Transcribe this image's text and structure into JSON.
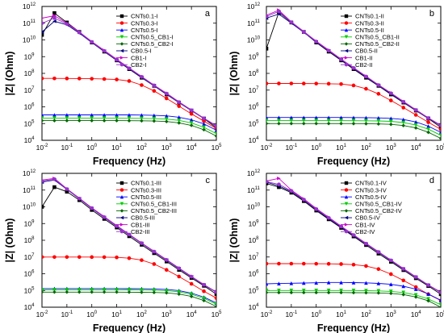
{
  "chart_data": [
    {
      "panel_label": "a",
      "type": "line",
      "xscale": "log",
      "yscale": "log",
      "xlabel": "Frequency (Hz)",
      "ylabel": "|Z| (Ohm)",
      "xlim": [
        0.01,
        100000
      ],
      "ylim": [
        10000,
        1000000000000
      ],
      "x": [
        0.01,
        0.0316,
        0.1,
        0.316,
        1,
        3.16,
        10,
        31.6,
        100,
        316,
        1000,
        3162,
        10000,
        31623,
        100000
      ],
      "series": [
        {
          "name": "CNTs0.1-I",
          "color": "#000000",
          "marker": "square",
          "values": [
            20000000000,
            400000000000,
            110000000000,
            30000000000,
            7000000000,
            2000000000,
            600000000,
            180000000,
            55000000,
            18000000,
            5500000,
            1800000,
            600000,
            200000,
            55000
          ]
        },
        {
          "name": "CNTs0.3-I",
          "color": "#ff0000",
          "marker": "circle",
          "values": [
            50000000,
            50000000,
            49500000,
            49000000,
            48000000,
            46000000,
            43000000,
            35000000,
            20000000,
            9000000,
            3200000,
            1100000,
            380000,
            140000,
            50000
          ]
        },
        {
          "name": "CNTs0.5-I",
          "color": "#0000ff",
          "marker": "triangle-up",
          "values": [
            330000,
            330000,
            330000,
            330000,
            330000,
            330000,
            330000,
            328000,
            322000,
            310000,
            290000,
            240000,
            170000,
            95000,
            40000
          ]
        },
        {
          "name": "CNTs0.5_CB1-I",
          "color": "#00cc00",
          "marker": "triangle-down",
          "values": [
            210000,
            210000,
            210000,
            210000,
            210000,
            210000,
            210000,
            208000,
            205000,
            198000,
            185000,
            155000,
            110000,
            60000,
            25000
          ]
        },
        {
          "name": "CNTs0.5_CB2-I",
          "color": "#006600",
          "marker": "diamond",
          "values": [
            150000,
            150000,
            150000,
            150000,
            150000,
            150000,
            150000,
            148000,
            146000,
            142000,
            132000,
            110000,
            78000,
            43000,
            18000
          ]
        },
        {
          "name": "CB0.5-I",
          "color": "#000080",
          "marker": "triangle-left",
          "values": [
            30000000000,
            130000000000,
            80000000000,
            25000000000,
            7000000000,
            2100000000,
            600000000,
            190000000,
            58000000,
            18000000,
            5800000,
            1800000,
            600000,
            200000,
            70000
          ]
        },
        {
          "name": "CB1-I",
          "color": "#cc00cc",
          "marker": "triangle-right",
          "values": [
            200000000000,
            280000000000,
            100000000000,
            30000000000,
            8000000000,
            2400000000,
            700000000,
            210000000,
            65000000,
            20000000,
            6500000,
            2000000,
            650000,
            210000,
            75000
          ]
        },
        {
          "name": "CB2-I",
          "color": "#9933cc",
          "marker": "circle",
          "values": [
            100000000000,
            200000000000,
            90000000000,
            28000000000,
            7500000000,
            2200000000,
            650000000,
            200000000,
            62000000,
            19000000,
            6200000,
            1900000,
            620000,
            205000,
            72000
          ]
        }
      ]
    },
    {
      "panel_label": "b",
      "type": "line",
      "xscale": "log",
      "yscale": "log",
      "xlabel": "Frequency (Hz)",
      "ylabel": "|Z| (Ohm)",
      "xlim": [
        0.01,
        100000
      ],
      "ylim": [
        10000,
        1000000000000
      ],
      "x": [
        0.01,
        0.0316,
        0.1,
        0.316,
        1,
        3.16,
        10,
        31.6,
        100,
        316,
        1000,
        3162,
        10000,
        31623,
        100000
      ],
      "series": [
        {
          "name": "CNTs0.1-II",
          "color": "#000000",
          "marker": "square",
          "values": [
            3000000000,
            450000000000,
            110000000000,
            30000000000,
            7000000000,
            2000000000,
            600000000,
            180000000,
            55000000,
            18000000,
            5500000,
            1800000,
            600000,
            200000,
            60000
          ]
        },
        {
          "name": "CNTs0.3-II",
          "color": "#ff0000",
          "marker": "circle",
          "values": [
            25000000,
            25000000,
            25000000,
            24800000,
            24500000,
            24000000,
            23000000,
            19000000,
            12000000,
            6000000,
            2400000,
            900000,
            330000,
            120000,
            45000
          ]
        },
        {
          "name": "CNTs0.5-II",
          "color": "#0000ff",
          "marker": "triangle-up",
          "values": [
            230000,
            230000,
            230000,
            230000,
            230000,
            230000,
            230000,
            228000,
            225000,
            218000,
            205000,
            175000,
            125000,
            70000,
            30000
          ]
        },
        {
          "name": "CNTs0.5_CB1-II",
          "color": "#00cc00",
          "marker": "triangle-down",
          "values": [
            150000,
            150000,
            150000,
            150000,
            150000,
            150000,
            150000,
            149000,
            147000,
            143000,
            135000,
            115000,
            82000,
            46000,
            20000
          ]
        },
        {
          "name": "CNTs0.5_CB2-II",
          "color": "#006600",
          "marker": "diamond",
          "values": [
            100000,
            100000,
            100000,
            100000,
            100000,
            100000,
            100000,
            99000,
            98000,
            95000,
            90000,
            76000,
            55000,
            30000,
            13000
          ]
        },
        {
          "name": "CB0.5-II",
          "color": "#000080",
          "marker": "triangle-left",
          "values": [
            200000000000,
            350000000000,
            100000000000,
            28000000000,
            7500000000,
            2200000000,
            650000000,
            200000000,
            60000000,
            19000000,
            6000000,
            1900000,
            620000,
            205000,
            75000
          ]
        },
        {
          "name": "CB1-II",
          "color": "#cc00cc",
          "marker": "triangle-right",
          "values": [
            300000000000,
            600000000000,
            120000000000,
            32000000000,
            8500000000,
            2500000000,
            720000000,
            220000000,
            68000000,
            21000000,
            6800000,
            2100000,
            680000,
            220000,
            80000
          ]
        },
        {
          "name": "CB2-II",
          "color": "#9933cc",
          "marker": "circle",
          "values": [
            250000000000,
            500000000000,
            115000000000,
            30000000000,
            8000000000,
            2300000000,
            690000000,
            210000000,
            65000000,
            20000000,
            6500000,
            2000000,
            650000,
            212000,
            78000
          ]
        }
      ]
    },
    {
      "panel_label": "c",
      "type": "line",
      "xscale": "log",
      "yscale": "log",
      "xlabel": "Frequency (Hz)",
      "ylabel": "|Z| (Ohm)",
      "xlim": [
        0.01,
        100000
      ],
      "ylim": [
        10000,
        1000000000000
      ],
      "x": [
        0.01,
        0.0316,
        0.1,
        0.316,
        1,
        3.16,
        10,
        31.6,
        100,
        316,
        1000,
        3162,
        10000,
        31623,
        100000
      ],
      "series": [
        {
          "name": "CNTs0.1-III",
          "color": "#000000",
          "marker": "square",
          "values": [
            10000000000,
            150000000000,
            80000000000,
            25000000000,
            6500000000,
            1900000000,
            580000000,
            175000000,
            54000000,
            17000000,
            5400000,
            1700000,
            560000,
            190000,
            60000
          ]
        },
        {
          "name": "CNTs0.3-III",
          "color": "#ff0000",
          "marker": "circle",
          "values": [
            10000000,
            10000000,
            10000000,
            9950000,
            9900000,
            9800000,
            9500000,
            8500000,
            6500000,
            3800000,
            1700000,
            680000,
            250000,
            90000,
            35000
          ]
        },
        {
          "name": "CNTs0.5-III",
          "color": "#0000ff",
          "marker": "triangle-up",
          "values": [
            130000,
            130000,
            130000,
            130000,
            130000,
            130000,
            130000,
            129000,
            127000,
            123000,
            116000,
            98000,
            70000,
            40000,
            18000
          ]
        },
        {
          "name": "CNTs0.5_CB1-III",
          "color": "#00cc00",
          "marker": "triangle-down",
          "values": [
            110000,
            110000,
            110000,
            110000,
            110000,
            110000,
            110000,
            109000,
            107000,
            104000,
            98000,
            83000,
            60000,
            34000,
            15000
          ]
        },
        {
          "name": "CNTs0.5_CB2-III",
          "color": "#006600",
          "marker": "diamond",
          "values": [
            80000,
            80000,
            80000,
            80000,
            80000,
            80000,
            80000,
            79000,
            78000,
            76000,
            72000,
            61000,
            44000,
            25000,
            11000
          ]
        },
        {
          "name": "CB0.5-III",
          "color": "#000080",
          "marker": "triangle-left",
          "values": [
            300000000000,
            400000000000,
            110000000000,
            30000000000,
            8000000000,
            2300000000,
            680000000,
            210000000,
            65000000,
            20000000,
            6400000,
            2000000,
            650000,
            212000,
            78000
          ]
        },
        {
          "name": "CB1-III",
          "color": "#cc00cc",
          "marker": "triangle-right",
          "values": [
            400000000000,
            500000000000,
            120000000000,
            33000000000,
            8800000000,
            2600000000,
            750000000,
            230000000,
            70000000,
            22000000,
            7000000,
            2200000,
            700000,
            225000,
            82000
          ]
        },
        {
          "name": "CB2-III",
          "color": "#9933cc",
          "marker": "circle",
          "values": [
            350000000000,
            450000000000,
            115000000000,
            31000000000,
            8300000000,
            2400000000,
            710000000,
            220000000,
            67000000,
            21000000,
            6700000,
            2100000,
            670000,
            218000,
            80000
          ]
        }
      ]
    },
    {
      "panel_label": "d",
      "type": "line",
      "xscale": "log",
      "yscale": "log",
      "xlabel": "Frequency (Hz)",
      "ylabel": "|Z| (Ohm)",
      "xlim": [
        0.01,
        100000
      ],
      "ylim": [
        10000,
        1000000000000
      ],
      "x": [
        0.01,
        0.0316,
        0.1,
        0.316,
        1,
        3.16,
        10,
        31.6,
        100,
        316,
        1000,
        3162,
        10000,
        31623,
        100000
      ],
      "series": [
        {
          "name": "CNTs0.1-IV",
          "color": "#000000",
          "marker": "square",
          "values": [
            250000000000,
            150000000000,
            70000000000,
            22000000000,
            6000000000,
            1800000000,
            550000000,
            170000000,
            52000000,
            16000000,
            5200000,
            1650000,
            540000,
            185000,
            60000
          ]
        },
        {
          "name": "CNTs0.3-IV",
          "color": "#ff0000",
          "marker": "circle",
          "values": [
            4000000,
            4000000,
            4000000,
            3980000,
            3950000,
            3900000,
            3800000,
            3500000,
            2900000,
            1900000,
            950000,
            400000,
            160000,
            60000,
            25000
          ]
        },
        {
          "name": "CNTs0.5-IV",
          "color": "#0000ff",
          "marker": "triangle-up",
          "values": [
            250000,
            260000,
            270000,
            280000,
            290000,
            300000,
            300000,
            295000,
            285000,
            265000,
            235000,
            180000,
            120000,
            62000,
            26000
          ]
        },
        {
          "name": "CNTs0.5_CB1-IV",
          "color": "#00cc00",
          "marker": "triangle-down",
          "values": [
            100000,
            100000,
            100000,
            100000,
            100000,
            100000,
            100000,
            99000,
            97000,
            94000,
            88000,
            75000,
            54000,
            31000,
            14000
          ]
        },
        {
          "name": "CNTs0.5_CB2-IV",
          "color": "#006600",
          "marker": "diamond",
          "values": [
            75000,
            75000,
            75000,
            75000,
            75000,
            75000,
            75000,
            74000,
            73000,
            71000,
            67000,
            57000,
            41000,
            24000,
            10000
          ]
        },
        {
          "name": "CB0.5-IV",
          "color": "#000080",
          "marker": "triangle-left",
          "values": [
            300000000000,
            180000000000,
            80000000000,
            25000000000,
            6800000000,
            2000000000,
            620000000,
            190000000,
            60000000,
            19000000,
            6000000,
            1900000,
            620000,
            205000,
            75000
          ]
        },
        {
          "name": "CB1-IV",
          "color": "#cc00cc",
          "marker": "triangle-right",
          "values": [
            350000000000,
            500000000000,
            100000000000,
            30000000000,
            8000000000,
            2400000000,
            700000000,
            215000000,
            66000000,
            21000000,
            6600000,
            2050000,
            660000,
            215000,
            80000
          ]
        },
        {
          "name": "CB2-IV",
          "color": "#9933cc",
          "marker": "circle",
          "values": [
            320000000000,
            220000000000,
            90000000000,
            27000000000,
            7300000000,
            2200000000,
            660000000,
            205000000,
            63000000,
            20000000,
            6300000,
            1950000,
            640000,
            210000,
            77000
          ]
        }
      ]
    }
  ]
}
